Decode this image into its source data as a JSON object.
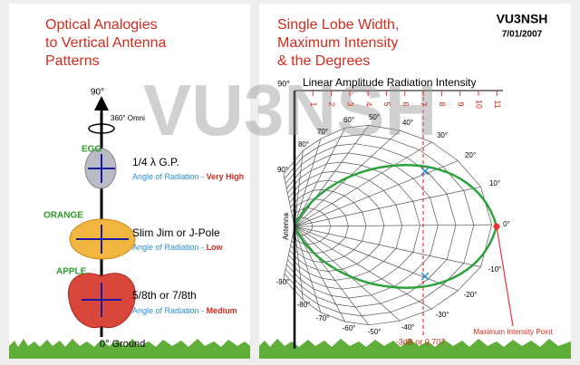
{
  "left_panel": {
    "title": [
      "Optical Analogies",
      "to Vertical Antenna",
      "Patterns"
    ],
    "top_label": "90°",
    "omni_label": "360° Omni",
    "ground_label": "0° Ground",
    "items": [
      {
        "fruit": "EGG",
        "antenna": "1/4 λ G.P.",
        "angle_label": "Angle of Radiation -",
        "angle_value": "Very High"
      },
      {
        "fruit": "ORANGE",
        "antenna": "Slim Jim or J-Pole",
        "angle_label": "Angle of Radiation -",
        "angle_value": "Low"
      },
      {
        "fruit": "APPLE",
        "antenna": "5/8th or 7/8th",
        "angle_label": "Angle of Radiation -",
        "angle_value": "Medium"
      }
    ]
  },
  "right_panel": {
    "title": [
      "Single Lobe Width,",
      "Maximum Intensity",
      "& the Degrees"
    ],
    "callsign": "VU3NSH",
    "date": "7/01/2007",
    "top_angle": "90°",
    "scale_title": "Linear Amplitude Radiation Intensity",
    "scale_ticks": [
      "1",
      "2",
      "3",
      "4",
      "5",
      "6",
      "7",
      "8",
      "9",
      "10",
      "11"
    ],
    "angle_labels": [
      "90°",
      "80°",
      "70°",
      "60°",
      "50°",
      "40°",
      "30°",
      "20°",
      "10°",
      "0°",
      "-10°",
      "-20°",
      "-30°",
      "-40°",
      "-50°",
      "-60°",
      "-70°",
      "-80°",
      "-90°"
    ],
    "axis_label": "Antenna",
    "dashed_label": "-3dB or 0.707",
    "max_label": "Maximum Intensity Point"
  },
  "watermark": "VU3NSH"
}
